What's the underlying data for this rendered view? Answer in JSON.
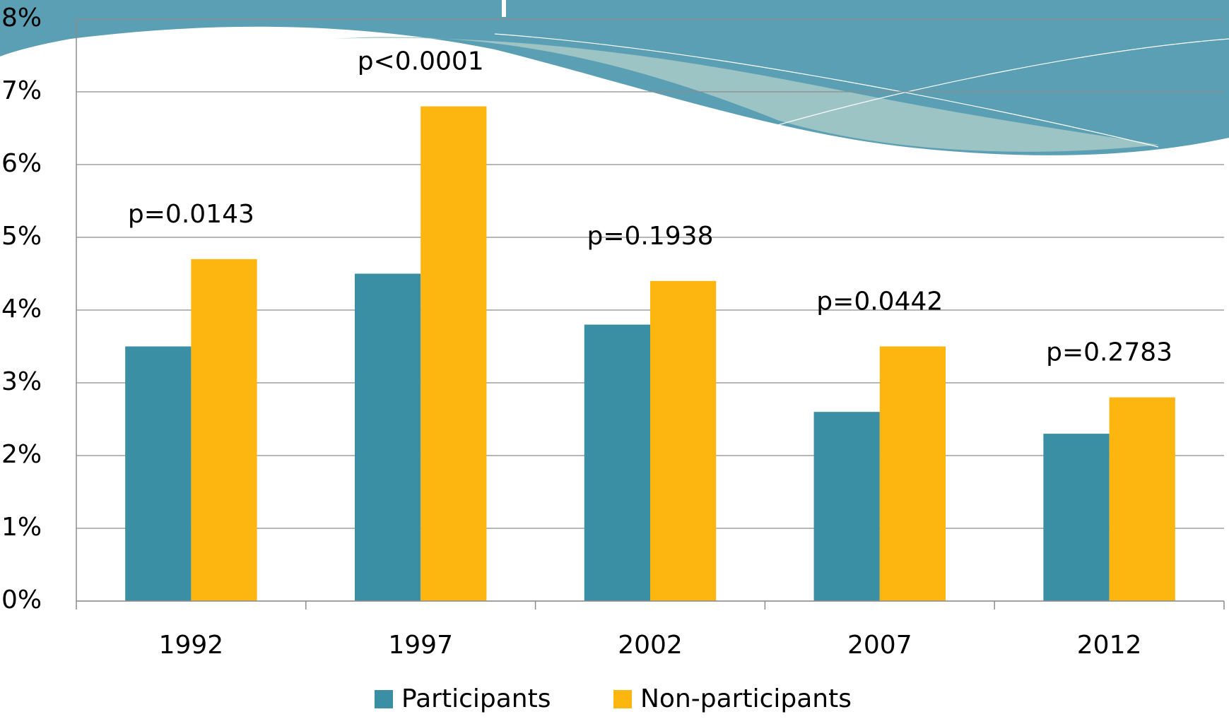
{
  "chart_data": {
    "type": "bar",
    "categories": [
      "1992",
      "1997",
      "2002",
      "2007",
      "2012"
    ],
    "series": [
      {
        "name": "Participants",
        "color": "#3a8fa5",
        "values": [
          3.5,
          4.5,
          3.8,
          2.6,
          2.3
        ]
      },
      {
        "name": "Non-participants",
        "color": "#fdb50f",
        "values": [
          4.7,
          6.8,
          4.4,
          3.5,
          2.8
        ]
      }
    ],
    "annotations": [
      "p=0.0143",
      "p<0.0001",
      "p=0.1938",
      "p=0.0442",
      "p=0.2783"
    ],
    "ylim": [
      0,
      8
    ],
    "yticks": [
      {
        "value": 0,
        "label": "0%"
      },
      {
        "value": 1,
        "label": "1%"
      },
      {
        "value": 2,
        "label": "2%"
      },
      {
        "value": 3,
        "label": "3%"
      },
      {
        "value": 4,
        "label": "4%"
      },
      {
        "value": 5,
        "label": "5%"
      },
      {
        "value": 6,
        "label": "6%"
      },
      {
        "value": 7,
        "label": "7%"
      },
      {
        "value": 8,
        "label": "8%"
      }
    ],
    "grid": true,
    "legend": "bottom"
  }
}
